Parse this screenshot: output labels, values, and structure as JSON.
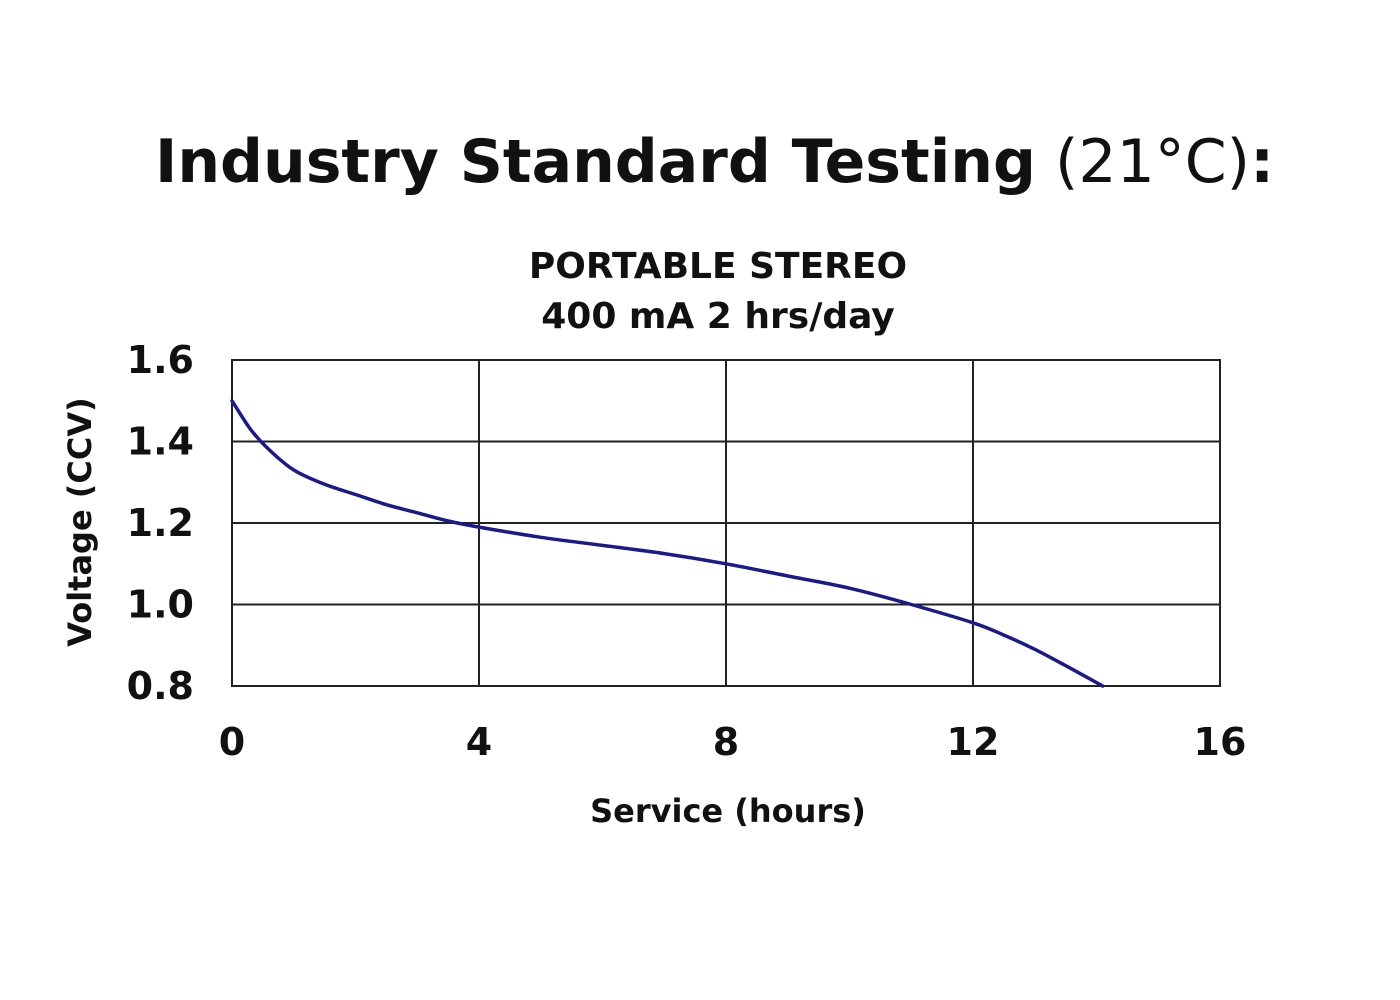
{
  "page": {
    "heading_bold": "Industry Standard Testing",
    "heading_normal": " (21°C)",
    "heading_colon": ":"
  },
  "chart_data": {
    "type": "line",
    "title_line1": "PORTABLE STEREO",
    "title_line2": "400 mA 2 hrs/day",
    "xlabel": "Service (hours)",
    "ylabel": "Voltage (CCV)",
    "xlim": [
      0,
      16
    ],
    "ylim": [
      0.8,
      1.6
    ],
    "xticks": [
      0,
      4,
      8,
      12,
      16
    ],
    "xtick_labels": [
      "0",
      "4",
      "8",
      "12",
      "16"
    ],
    "yticks": [
      0.8,
      1.0,
      1.2,
      1.4,
      1.6
    ],
    "ytick_labels": [
      "0.8",
      "1.0",
      "1.2",
      "1.4",
      "1.6"
    ],
    "grid": true,
    "line_color": "#1a1a8c",
    "grid_color": "#222222",
    "series": [
      {
        "x": [
          0,
          0.3,
          0.6,
          1.0,
          1.5,
          2.0,
          2.5,
          3.0,
          3.5,
          4.0,
          5.0,
          6.0,
          7.0,
          8.0,
          9.0,
          10.0,
          11.0,
          12.0,
          12.5,
          13.0,
          13.5,
          14.1
        ],
        "y": [
          1.5,
          1.43,
          1.38,
          1.33,
          1.295,
          1.27,
          1.245,
          1.225,
          1.205,
          1.19,
          1.165,
          1.145,
          1.125,
          1.1,
          1.07,
          1.04,
          1.0,
          0.955,
          0.925,
          0.89,
          0.85,
          0.8
        ]
      }
    ]
  }
}
